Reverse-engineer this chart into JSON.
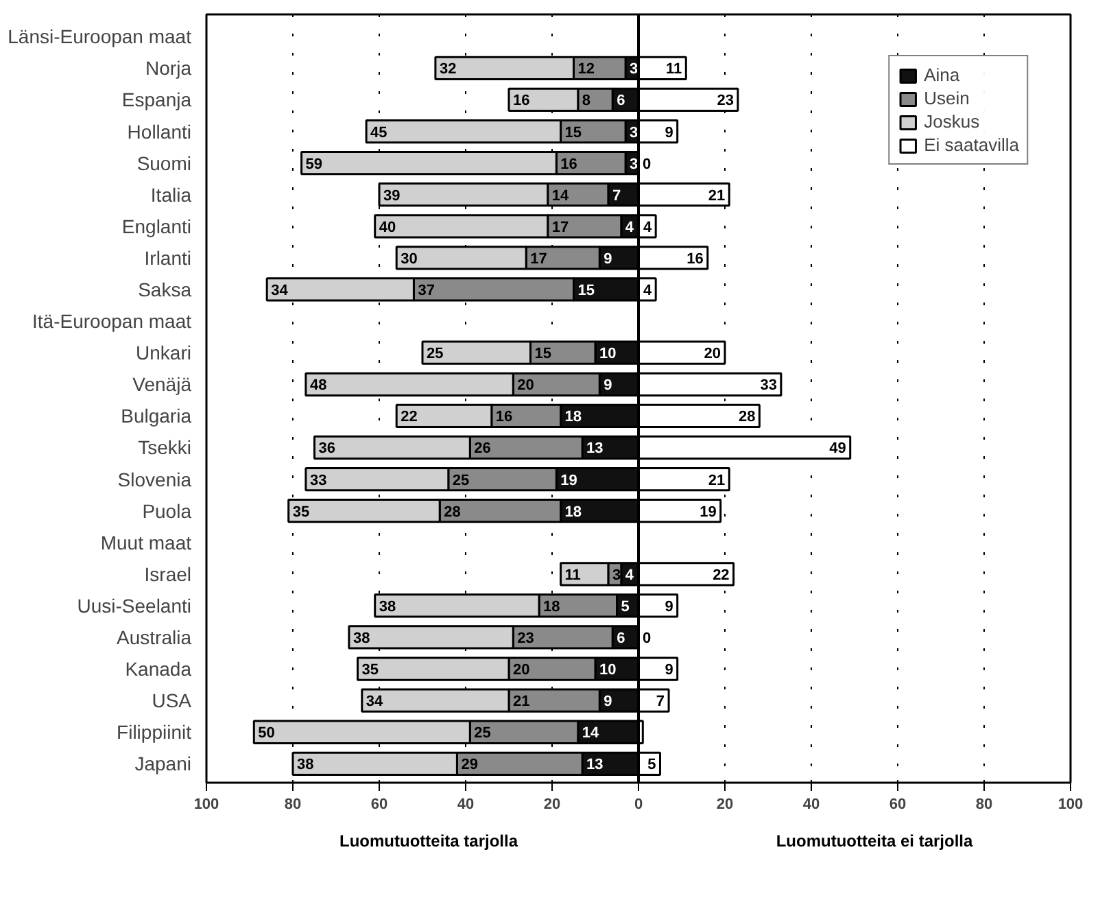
{
  "chart_data": {
    "type": "bar",
    "orientation": "horizontal",
    "categories": [
      "Länsi-Euroopan maat",
      "Norja",
      "Espanja",
      "Hollanti",
      "Suomi",
      "Italia",
      "Englanti",
      "Irlanti",
      "Saksa",
      "Itä-Euroopan maat",
      "Unkari",
      "Venäjä",
      "Bulgaria",
      "Tsekki",
      "Slovenia",
      "Puola",
      "Muut maat",
      "Israel",
      "Uusi-Seelanti",
      "Australia",
      "Kanada",
      "USA",
      "Filippiinit",
      "Japani"
    ],
    "series": [
      {
        "name": "Aina",
        "color": "#111111",
        "values": [
          null,
          3,
          6,
          3,
          3,
          7,
          4,
          9,
          15,
          null,
          10,
          9,
          18,
          13,
          19,
          18,
          null,
          4,
          5,
          6,
          10,
          9,
          14,
          13
        ],
        "base": [
          null,
          -3,
          -6,
          -3,
          -3,
          -7,
          -4,
          -9,
          -15,
          null,
          -10,
          -9,
          -18,
          -13,
          -19,
          -18,
          null,
          -4,
          -5,
          -6,
          -10,
          -9,
          -14,
          -13
        ]
      },
      {
        "name": "Usein",
        "color": "#8a8a8a",
        "values": [
          null,
          12,
          8,
          15,
          16,
          14,
          17,
          17,
          37,
          null,
          15,
          20,
          16,
          26,
          25,
          28,
          null,
          3,
          18,
          23,
          20,
          21,
          25,
          29
        ],
        "base": [
          null,
          -15,
          -14,
          -18,
          -19,
          -21,
          -21,
          -26,
          -52,
          null,
          -25,
          -29,
          -34,
          -39,
          -44,
          -46,
          null,
          -7,
          -23,
          -29,
          -30,
          -30,
          -39,
          -42
        ]
      },
      {
        "name": "Joskus",
        "color": "#d0d0d0",
        "values": [
          null,
          32,
          16,
          45,
          59,
          39,
          40,
          30,
          34,
          null,
          25,
          48,
          22,
          36,
          33,
          35,
          null,
          11,
          38,
          38,
          35,
          34,
          50,
          38
        ],
        "base": [
          null,
          -47,
          -30,
          -63,
          -78,
          -60,
          -61,
          -56,
          -86,
          null,
          -50,
          -77,
          -56,
          -75,
          -77,
          -81,
          null,
          -18,
          -61,
          -67,
          -65,
          -64,
          -89,
          -80
        ]
      },
      {
        "name": "Ei saatavilla",
        "color": "#ffffff",
        "values": [
          null,
          11,
          23,
          9,
          0,
          21,
          4,
          16,
          4,
          null,
          20,
          33,
          28,
          49,
          21,
          19,
          null,
          22,
          9,
          0,
          9,
          7,
          1,
          5
        ],
        "value_labels": [
          null,
          "11",
          "23",
          "9",
          "0",
          "21",
          "4",
          "16",
          "4",
          null,
          "20",
          "33",
          "28",
          "49",
          "21",
          "19",
          null,
          "22",
          "9",
          "0",
          "9",
          "7",
          null,
          "5"
        ]
      }
    ],
    "xlim": [
      -100,
      100
    ],
    "xticks": [
      {
        "value": -100,
        "label": "100"
      },
      {
        "value": -80,
        "label": "80"
      },
      {
        "value": -60,
        "label": "60"
      },
      {
        "value": -40,
        "label": "40"
      },
      {
        "value": -20,
        "label": "20"
      },
      0,
      20,
      40,
      60,
      80,
      100
    ],
    "ref_lines": [
      {
        "axis": "x",
        "value": 0,
        "color": "#000000",
        "line_style": "solid"
      }
    ],
    "grid": "x",
    "legend": "top right",
    "data_labels": true,
    "annotations": [
      "Luomutuotteita tarjolla",
      "Luomutuotteita ei tarjolla"
    ]
  }
}
